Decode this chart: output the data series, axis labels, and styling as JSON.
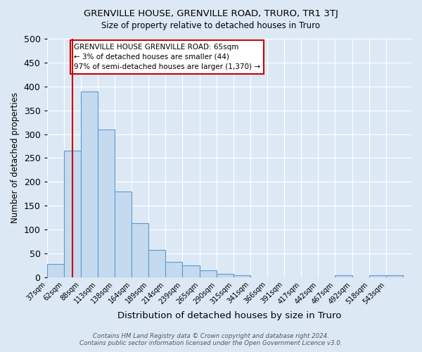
{
  "title": "GRENVILLE HOUSE, GRENVILLE ROAD, TRURO, TR1 3TJ",
  "subtitle": "Size of property relative to detached houses in Truro",
  "xlabel": "Distribution of detached houses by size in Truro",
  "ylabel": "Number of detached properties",
  "footer1": "Contains HM Land Registry data © Crown copyright and database right 2024.",
  "footer2": "Contains public sector information licensed under the Open Government Licence v3.0.",
  "categories": [
    "37sqm",
    "62sqm",
    "88sqm",
    "113sqm",
    "138sqm",
    "164sqm",
    "189sqm",
    "214sqm",
    "239sqm",
    "265sqm",
    "290sqm",
    "315sqm",
    "341sqm",
    "366sqm",
    "391sqm",
    "417sqm",
    "442sqm",
    "467sqm",
    "492sqm",
    "518sqm",
    "543sqm"
  ],
  "values": [
    28,
    265,
    390,
    310,
    180,
    113,
    58,
    32,
    25,
    15,
    7,
    5,
    0,
    0,
    0,
    0,
    0,
    5,
    0,
    5,
    5
  ],
  "bar_color": "#c5d9ef",
  "bar_edge_color": "#5b9bd5",
  "background_color": "#dce9f5",
  "grid_color": "#e0e8f4",
  "red_line_x": 1.5,
  "annotation_text": "GRENVILLE HOUSE GRENVILLE ROAD: 65sqm\n← 3% of detached houses are smaller (44)\n97% of semi-detached houses are larger (1,370) →",
  "annotation_box_facecolor": "#ffffff",
  "annotation_box_edgecolor": "#cc0000",
  "ylim": [
    0,
    500
  ],
  "yticks": [
    0,
    50,
    100,
    150,
    200,
    250,
    300,
    350,
    400,
    450,
    500
  ]
}
